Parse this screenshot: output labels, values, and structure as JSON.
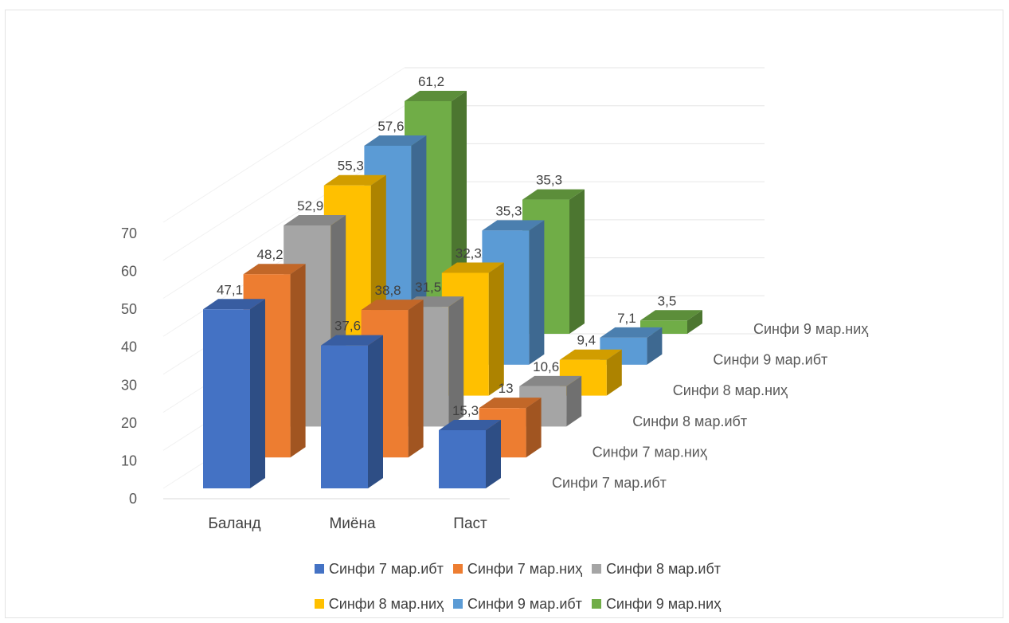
{
  "chart_data": {
    "type": "bar",
    "subtype": "3d-column",
    "title": "",
    "categories": [
      "Баланд",
      "Миёна",
      "Паст"
    ],
    "series": [
      {
        "name": "Синфи 7 мар.ибт",
        "color": "#4472C4",
        "values": [
          47.1,
          37.6,
          15.3
        ],
        "labels": [
          "47,1",
          "37,6",
          "15,3"
        ]
      },
      {
        "name": "Синфи 7 мар.ниҳ",
        "color": "#ED7D31",
        "values": [
          48.2,
          38.8,
          13
        ],
        "labels": [
          "48,2",
          "38,8",
          "13"
        ]
      },
      {
        "name": "Синфи 8 мар.ибт",
        "color": "#A5A5A5",
        "values": [
          52.9,
          31.5,
          10.6
        ],
        "labels": [
          "52,9",
          "31,5",
          "10,6"
        ]
      },
      {
        "name": "Синфи 8 мар.ниҳ",
        "color": "#FFC000",
        "values": [
          55.3,
          32.3,
          9.4
        ],
        "labels": [
          "55,3",
          "32,3",
          "9,4"
        ]
      },
      {
        "name": "Синфи 9 мар.ибт",
        "color": "#5B9BD5",
        "values": [
          57.6,
          35.3,
          7.1
        ],
        "labels": [
          "57,6",
          "35,3",
          "7,1"
        ]
      },
      {
        "name": "Синфи 9 мар.ниҳ",
        "color": "#70AD47",
        "values": [
          61.2,
          35.3,
          3.5
        ],
        "labels": [
          "61,2",
          "35,3",
          "3,5"
        ]
      }
    ],
    "ylim": [
      0,
      70
    ],
    "yticks": [
      0,
      10,
      20,
      30,
      40,
      50,
      60,
      70
    ],
    "grid": true,
    "legend_position": "bottom"
  }
}
